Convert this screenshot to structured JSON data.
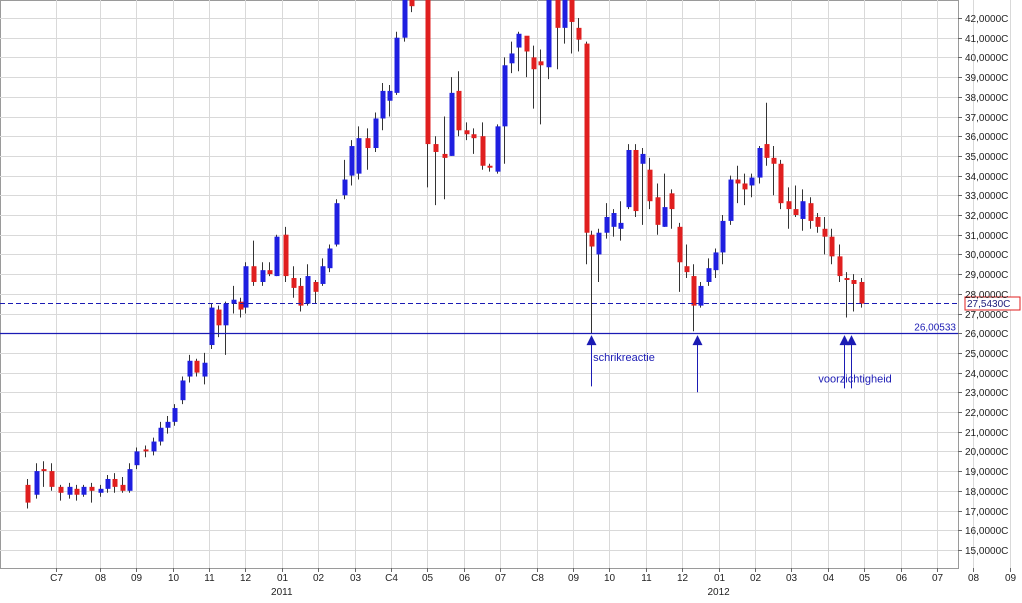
{
  "chart_data": {
    "type": "candlestick",
    "title": "",
    "xlabel": "",
    "ylabel": "",
    "ylim": [
      14.3,
      43.0
    ],
    "grid": true,
    "colors": {
      "up": "#1f1fe0",
      "down": "#e01f1f",
      "wick": "#333333",
      "annotation": "#1b1bb4"
    },
    "y_ticks": [
      {
        "v": 15,
        "label": "15,0000C"
      },
      {
        "v": 16,
        "label": "16,0000C"
      },
      {
        "v": 17,
        "label": "17,0000C"
      },
      {
        "v": 18,
        "label": "18,0000C"
      },
      {
        "v": 19,
        "label": "19,0000C"
      },
      {
        "v": 20,
        "label": "20,0000C"
      },
      {
        "v": 21,
        "label": "21,0000C"
      },
      {
        "v": 22,
        "label": "22,0000C"
      },
      {
        "v": 23,
        "label": "23,0000C"
      },
      {
        "v": 24,
        "label": "24,0000C"
      },
      {
        "v": 25,
        "label": "25,0000C"
      },
      {
        "v": 26,
        "label": "26,0000C"
      },
      {
        "v": 27,
        "label": "27,0000C"
      },
      {
        "v": 28,
        "label": "28,0000C"
      },
      {
        "v": 29,
        "label": "29,0000C"
      },
      {
        "v": 30,
        "label": "30,0000C"
      },
      {
        "v": 31,
        "label": "31,0000C"
      },
      {
        "v": 32,
        "label": "32,0000C"
      },
      {
        "v": 33,
        "label": "33,0000C"
      },
      {
        "v": 34,
        "label": "34,0000C"
      },
      {
        "v": 35,
        "label": "35,0000C"
      },
      {
        "v": 36,
        "label": "36,0000C"
      },
      {
        "v": 37,
        "label": "37,0000C"
      },
      {
        "v": 38,
        "label": "38,0000C"
      },
      {
        "v": 39,
        "label": "39,0000C"
      },
      {
        "v": 40,
        "label": "40,0000C"
      },
      {
        "v": 41,
        "label": "41,0000C"
      },
      {
        "v": 42,
        "label": "42,0000C"
      }
    ],
    "x_ticks": [
      {
        "t": 0.8,
        "label": "C7"
      },
      {
        "t": 2.0,
        "label": "08"
      },
      {
        "t": 3.0,
        "label": "09"
      },
      {
        "t": 4.0,
        "label": "10"
      },
      {
        "t": 5.0,
        "label": "11"
      },
      {
        "t": 6.0,
        "label": "12"
      },
      {
        "t": 7.0,
        "label": "01"
      },
      {
        "t": 8.0,
        "label": "02"
      },
      {
        "t": 9.0,
        "label": "03"
      },
      {
        "t": 10.0,
        "label": "C4"
      },
      {
        "t": 11.0,
        "label": "05"
      },
      {
        "t": 12.0,
        "label": "06"
      },
      {
        "t": 13.0,
        "label": "07"
      },
      {
        "t": 14.0,
        "label": "C8"
      },
      {
        "t": 15.0,
        "label": "09"
      },
      {
        "t": 16.0,
        "label": "10"
      },
      {
        "t": 17.0,
        "label": "11"
      },
      {
        "t": 18.0,
        "label": "12"
      },
      {
        "t": 19.0,
        "label": "01"
      },
      {
        "t": 20.0,
        "label": "02"
      },
      {
        "t": 21.0,
        "label": "03"
      },
      {
        "t": 22.0,
        "label": "04"
      },
      {
        "t": 23.0,
        "label": "05"
      },
      {
        "t": 24.0,
        "label": "06"
      },
      {
        "t": 25.0,
        "label": "07"
      },
      {
        "t": 26.0,
        "label": "08"
      },
      {
        "t": 27.0,
        "label": "09"
      }
    ],
    "year_labels": [
      {
        "t": 7.0,
        "label": "2011"
      },
      {
        "t": 19.0,
        "label": "2012"
      }
    ],
    "candles": [
      {
        "t": 0.0,
        "o": 18.3,
        "h": 18.6,
        "l": 17.1,
        "c": 17.4
      },
      {
        "t": 0.25,
        "o": 17.8,
        "h": 19.4,
        "l": 17.6,
        "c": 19.0
      },
      {
        "t": 0.45,
        "o": 19.1,
        "h": 19.5,
        "l": 18.2,
        "c": 19.0
      },
      {
        "t": 0.65,
        "o": 19.0,
        "h": 19.4,
        "l": 18.0,
        "c": 18.2
      },
      {
        "t": 0.9,
        "o": 18.2,
        "h": 18.3,
        "l": 17.5,
        "c": 17.9
      },
      {
        "t": 1.15,
        "o": 17.8,
        "h": 18.4,
        "l": 17.6,
        "c": 18.2
      },
      {
        "t": 1.35,
        "o": 18.1,
        "h": 18.3,
        "l": 17.5,
        "c": 17.8
      },
      {
        "t": 1.55,
        "o": 17.8,
        "h": 18.3,
        "l": 17.7,
        "c": 18.2
      },
      {
        "t": 1.75,
        "o": 18.2,
        "h": 18.4,
        "l": 17.4,
        "c": 18.0
      },
      {
        "t": 2.0,
        "o": 17.9,
        "h": 18.3,
        "l": 17.7,
        "c": 18.1
      },
      {
        "t": 2.2,
        "o": 18.1,
        "h": 18.8,
        "l": 17.9,
        "c": 18.6
      },
      {
        "t": 2.4,
        "o": 18.6,
        "h": 18.9,
        "l": 17.9,
        "c": 18.2
      },
      {
        "t": 2.6,
        "o": 18.3,
        "h": 18.7,
        "l": 17.9,
        "c": 18.0
      },
      {
        "t": 2.8,
        "o": 18.0,
        "h": 19.4,
        "l": 17.9,
        "c": 19.1
      },
      {
        "t": 3.0,
        "o": 19.3,
        "h": 20.2,
        "l": 19.1,
        "c": 20.0
      },
      {
        "t": 3.25,
        "o": 20.1,
        "h": 20.3,
        "l": 19.7,
        "c": 20.0
      },
      {
        "t": 3.45,
        "o": 20.0,
        "h": 20.7,
        "l": 19.8,
        "c": 20.5
      },
      {
        "t": 3.65,
        "o": 20.5,
        "h": 21.5,
        "l": 20.3,
        "c": 21.2
      },
      {
        "t": 3.85,
        "o": 21.2,
        "h": 21.8,
        "l": 20.9,
        "c": 21.5
      },
      {
        "t": 4.05,
        "o": 21.5,
        "h": 22.4,
        "l": 21.3,
        "c": 22.2
      },
      {
        "t": 4.25,
        "o": 22.6,
        "h": 23.8,
        "l": 22.4,
        "c": 23.6
      },
      {
        "t": 4.45,
        "o": 23.8,
        "h": 24.9,
        "l": 23.5,
        "c": 24.6
      },
      {
        "t": 4.65,
        "o": 24.6,
        "h": 24.7,
        "l": 23.8,
        "c": 24.0
      },
      {
        "t": 4.85,
        "o": 23.8,
        "h": 25.0,
        "l": 23.4,
        "c": 24.5
      },
      {
        "t": 5.05,
        "o": 25.4,
        "h": 27.5,
        "l": 25.2,
        "c": 27.3
      },
      {
        "t": 5.25,
        "o": 27.2,
        "h": 27.4,
        "l": 25.8,
        "c": 26.4
      },
      {
        "t": 5.45,
        "o": 26.4,
        "h": 27.6,
        "l": 24.9,
        "c": 27.5
      },
      {
        "t": 5.65,
        "o": 27.5,
        "h": 28.4,
        "l": 27.0,
        "c": 27.7
      },
      {
        "t": 5.85,
        "o": 27.6,
        "h": 27.8,
        "l": 26.8,
        "c": 27.2
      },
      {
        "t": 6.0,
        "o": 27.3,
        "h": 29.6,
        "l": 27.0,
        "c": 29.4
      },
      {
        "t": 6.2,
        "o": 29.4,
        "h": 30.7,
        "l": 28.4,
        "c": 28.6
      },
      {
        "t": 6.45,
        "o": 28.6,
        "h": 29.6,
        "l": 28.4,
        "c": 29.2
      },
      {
        "t": 6.65,
        "o": 29.2,
        "h": 29.6,
        "l": 28.9,
        "c": 29.0
      },
      {
        "t": 6.85,
        "o": 28.9,
        "h": 31.0,
        "l": 28.9,
        "c": 30.9
      },
      {
        "t": 7.1,
        "o": 31.0,
        "h": 31.4,
        "l": 28.6,
        "c": 28.9
      },
      {
        "t": 7.3,
        "o": 28.8,
        "h": 29.4,
        "l": 27.8,
        "c": 28.3
      },
      {
        "t": 7.5,
        "o": 28.4,
        "h": 28.8,
        "l": 27.1,
        "c": 27.4
      },
      {
        "t": 7.7,
        "o": 27.5,
        "h": 29.5,
        "l": 27.4,
        "c": 28.9
      },
      {
        "t": 7.9,
        "o": 28.6,
        "h": 28.7,
        "l": 27.5,
        "c": 28.1
      },
      {
        "t": 8.1,
        "o": 28.5,
        "h": 29.8,
        "l": 28.4,
        "c": 29.4
      },
      {
        "t": 8.3,
        "o": 29.3,
        "h": 30.5,
        "l": 29.1,
        "c": 30.3
      },
      {
        "t": 8.5,
        "o": 30.5,
        "h": 32.8,
        "l": 30.4,
        "c": 32.6
      },
      {
        "t": 8.7,
        "o": 33.0,
        "h": 34.8,
        "l": 32.8,
        "c": 33.8
      },
      {
        "t": 8.9,
        "o": 34.0,
        "h": 35.8,
        "l": 33.5,
        "c": 35.5
      },
      {
        "t": 9.1,
        "o": 34.1,
        "h": 36.5,
        "l": 33.8,
        "c": 35.9
      },
      {
        "t": 9.35,
        "o": 35.9,
        "h": 36.4,
        "l": 34.3,
        "c": 35.4
      },
      {
        "t": 9.55,
        "o": 35.4,
        "h": 37.2,
        "l": 35.2,
        "c": 36.9
      },
      {
        "t": 9.75,
        "o": 36.9,
        "h": 38.7,
        "l": 36.3,
        "c": 38.3
      },
      {
        "t": 9.95,
        "o": 37.8,
        "h": 38.6,
        "l": 37.0,
        "c": 38.3
      },
      {
        "t": 10.15,
        "o": 38.2,
        "h": 41.3,
        "l": 38.1,
        "c": 41.0
      },
      {
        "t": 10.35,
        "o": 41.0,
        "h": 43.2,
        "l": 40.8,
        "c": 43.1
      },
      {
        "t": 10.55,
        "o": 43.0,
        "h": 43.4,
        "l": 42.3,
        "c": 42.6
      },
      {
        "t": 11.0,
        "o": 43.1,
        "h": 43.4,
        "l": 33.4,
        "c": 35.6
      },
      {
        "t": 11.2,
        "o": 35.6,
        "h": 36.0,
        "l": 32.5,
        "c": 35.2
      },
      {
        "t": 11.45,
        "o": 35.1,
        "h": 37.0,
        "l": 32.8,
        "c": 34.9
      },
      {
        "t": 11.65,
        "o": 35.0,
        "h": 39.0,
        "l": 35.0,
        "c": 38.2
      },
      {
        "t": 11.85,
        "o": 38.3,
        "h": 39.3,
        "l": 36.0,
        "c": 36.3
      },
      {
        "t": 12.05,
        "o": 36.3,
        "h": 36.7,
        "l": 35.8,
        "c": 36.1
      },
      {
        "t": 12.25,
        "o": 36.1,
        "h": 36.4,
        "l": 35.1,
        "c": 35.9
      },
      {
        "t": 12.5,
        "o": 36.0,
        "h": 36.7,
        "l": 34.3,
        "c": 34.5
      },
      {
        "t": 12.7,
        "o": 34.5,
        "h": 34.6,
        "l": 34.2,
        "c": 34.4
      },
      {
        "t": 12.9,
        "o": 34.2,
        "h": 36.6,
        "l": 34.1,
        "c": 36.5
      },
      {
        "t": 13.1,
        "o": 36.5,
        "h": 40.0,
        "l": 34.6,
        "c": 39.6
      },
      {
        "t": 13.3,
        "o": 39.7,
        "h": 40.8,
        "l": 39.2,
        "c": 40.2
      },
      {
        "t": 13.5,
        "o": 40.5,
        "h": 41.3,
        "l": 39.3,
        "c": 41.2
      },
      {
        "t": 13.7,
        "o": 41.1,
        "h": 40.9,
        "l": 39.0,
        "c": 40.3
      },
      {
        "t": 13.9,
        "o": 40.0,
        "h": 40.6,
        "l": 37.4,
        "c": 39.4
      },
      {
        "t": 14.1,
        "o": 39.8,
        "h": 40.4,
        "l": 36.6,
        "c": 39.6
      },
      {
        "t": 14.3,
        "o": 39.5,
        "h": 43.2,
        "l": 38.9,
        "c": 43.1
      },
      {
        "t": 14.55,
        "o": 43.1,
        "h": 43.4,
        "l": 39.4,
        "c": 41.5
      },
      {
        "t": 14.75,
        "o": 41.5,
        "h": 43.2,
        "l": 40.7,
        "c": 43.0
      },
      {
        "t": 14.95,
        "o": 43.1,
        "h": 43.3,
        "l": 40.2,
        "c": 41.8
      },
      {
        "t": 15.15,
        "o": 41.5,
        "h": 42.0,
        "l": 40.3,
        "c": 40.9
      },
      {
        "t": 15.35,
        "o": 40.7,
        "h": 40.8,
        "l": 29.5,
        "c": 31.1
      },
      {
        "t": 15.5,
        "o": 31.0,
        "h": 31.2,
        "l": 26.0,
        "c": 30.4
      },
      {
        "t": 15.7,
        "o": 30.0,
        "h": 31.3,
        "l": 28.6,
        "c": 31.1
      },
      {
        "t": 15.9,
        "o": 31.1,
        "h": 32.6,
        "l": 30.8,
        "c": 31.9
      },
      {
        "t": 16.1,
        "o": 31.4,
        "h": 32.3,
        "l": 30.9,
        "c": 32.1
      },
      {
        "t": 16.3,
        "o": 31.3,
        "h": 32.7,
        "l": 30.7,
        "c": 31.6
      },
      {
        "t": 16.5,
        "o": 32.4,
        "h": 35.6,
        "l": 32.3,
        "c": 35.3
      },
      {
        "t": 16.7,
        "o": 35.3,
        "h": 35.6,
        "l": 31.9,
        "c": 32.2
      },
      {
        "t": 16.9,
        "o": 34.6,
        "h": 35.4,
        "l": 31.5,
        "c": 35.1
      },
      {
        "t": 17.1,
        "o": 34.3,
        "h": 34.9,
        "l": 32.3,
        "c": 32.7
      },
      {
        "t": 17.3,
        "o": 32.9,
        "h": 33.6,
        "l": 31.0,
        "c": 31.5
      },
      {
        "t": 17.5,
        "o": 31.4,
        "h": 34.1,
        "l": 31.4,
        "c": 32.4
      },
      {
        "t": 17.7,
        "o": 33.1,
        "h": 33.3,
        "l": 31.3,
        "c": 32.3
      },
      {
        "t": 17.9,
        "o": 31.4,
        "h": 31.6,
        "l": 28.1,
        "c": 29.6
      },
      {
        "t": 18.1,
        "o": 29.4,
        "h": 30.5,
        "l": 28.8,
        "c": 29.1
      },
      {
        "t": 18.3,
        "o": 28.9,
        "h": 29.5,
        "l": 26.1,
        "c": 27.4
      },
      {
        "t": 18.5,
        "o": 27.4,
        "h": 28.6,
        "l": 27.3,
        "c": 28.4
      },
      {
        "t": 18.7,
        "o": 28.6,
        "h": 29.8,
        "l": 28.4,
        "c": 29.3
      },
      {
        "t": 18.9,
        "o": 29.2,
        "h": 30.3,
        "l": 28.8,
        "c": 30.1
      },
      {
        "t": 19.1,
        "o": 30.1,
        "h": 32.0,
        "l": 29.5,
        "c": 31.7
      },
      {
        "t": 19.3,
        "o": 31.7,
        "h": 34.0,
        "l": 31.5,
        "c": 33.8
      },
      {
        "t": 19.5,
        "o": 33.8,
        "h": 34.5,
        "l": 32.6,
        "c": 33.6
      },
      {
        "t": 19.7,
        "o": 33.6,
        "h": 34.1,
        "l": 32.5,
        "c": 33.3
      },
      {
        "t": 19.9,
        "o": 33.5,
        "h": 34.1,
        "l": 32.9,
        "c": 33.9
      },
      {
        "t": 20.1,
        "o": 33.9,
        "h": 35.5,
        "l": 33.6,
        "c": 35.4
      },
      {
        "t": 20.3,
        "o": 35.6,
        "h": 37.7,
        "l": 34.5,
        "c": 34.9
      },
      {
        "t": 20.5,
        "o": 34.9,
        "h": 35.5,
        "l": 33.0,
        "c": 34.6
      },
      {
        "t": 20.7,
        "o": 34.6,
        "h": 34.8,
        "l": 32.3,
        "c": 32.6
      },
      {
        "t": 20.9,
        "o": 32.7,
        "h": 33.4,
        "l": 31.3,
        "c": 32.3
      },
      {
        "t": 21.1,
        "o": 32.3,
        "h": 33.5,
        "l": 31.9,
        "c": 32.0
      },
      {
        "t": 21.3,
        "o": 31.8,
        "h": 33.3,
        "l": 31.2,
        "c": 32.7
      },
      {
        "t": 21.5,
        "o": 32.6,
        "h": 32.9,
        "l": 31.3,
        "c": 31.7
      },
      {
        "t": 21.7,
        "o": 31.9,
        "h": 32.1,
        "l": 31.1,
        "c": 31.4
      },
      {
        "t": 21.9,
        "o": 31.3,
        "h": 31.9,
        "l": 30.0,
        "c": 30.9
      },
      {
        "t": 22.1,
        "o": 30.9,
        "h": 31.3,
        "l": 29.5,
        "c": 29.9
      },
      {
        "t": 22.3,
        "o": 29.9,
        "h": 30.5,
        "l": 28.6,
        "c": 28.9
      },
      {
        "t": 22.5,
        "o": 28.8,
        "h": 29.1,
        "l": 26.8,
        "c": 28.7
      },
      {
        "t": 22.7,
        "o": 28.7,
        "h": 29.0,
        "l": 27.1,
        "c": 28.5
      },
      {
        "t": 22.9,
        "o": 28.6,
        "h": 28.8,
        "l": 27.3,
        "c": 27.5
      }
    ],
    "annotations": {
      "support_value": 26.00533,
      "support_label": "26,00533",
      "last_value": 27.543,
      "last_label": "27,5430C",
      "text_1": "schrikreactie",
      "text_1_at": {
        "t": 16.4,
        "v": 24.6
      },
      "text_2": "voorzichtigheid",
      "text_2_at": {
        "t": 22.75,
        "v": 23.5
      },
      "arrows": [
        {
          "t": 15.5,
          "from": 23.3,
          "to": 25.9
        },
        {
          "t": 18.4,
          "from": 23.0,
          "to": 25.9
        },
        {
          "t": 22.45,
          "from": 23.2,
          "to": 25.9
        },
        {
          "t": 22.65,
          "from": 23.2,
          "to": 25.9
        }
      ]
    }
  }
}
